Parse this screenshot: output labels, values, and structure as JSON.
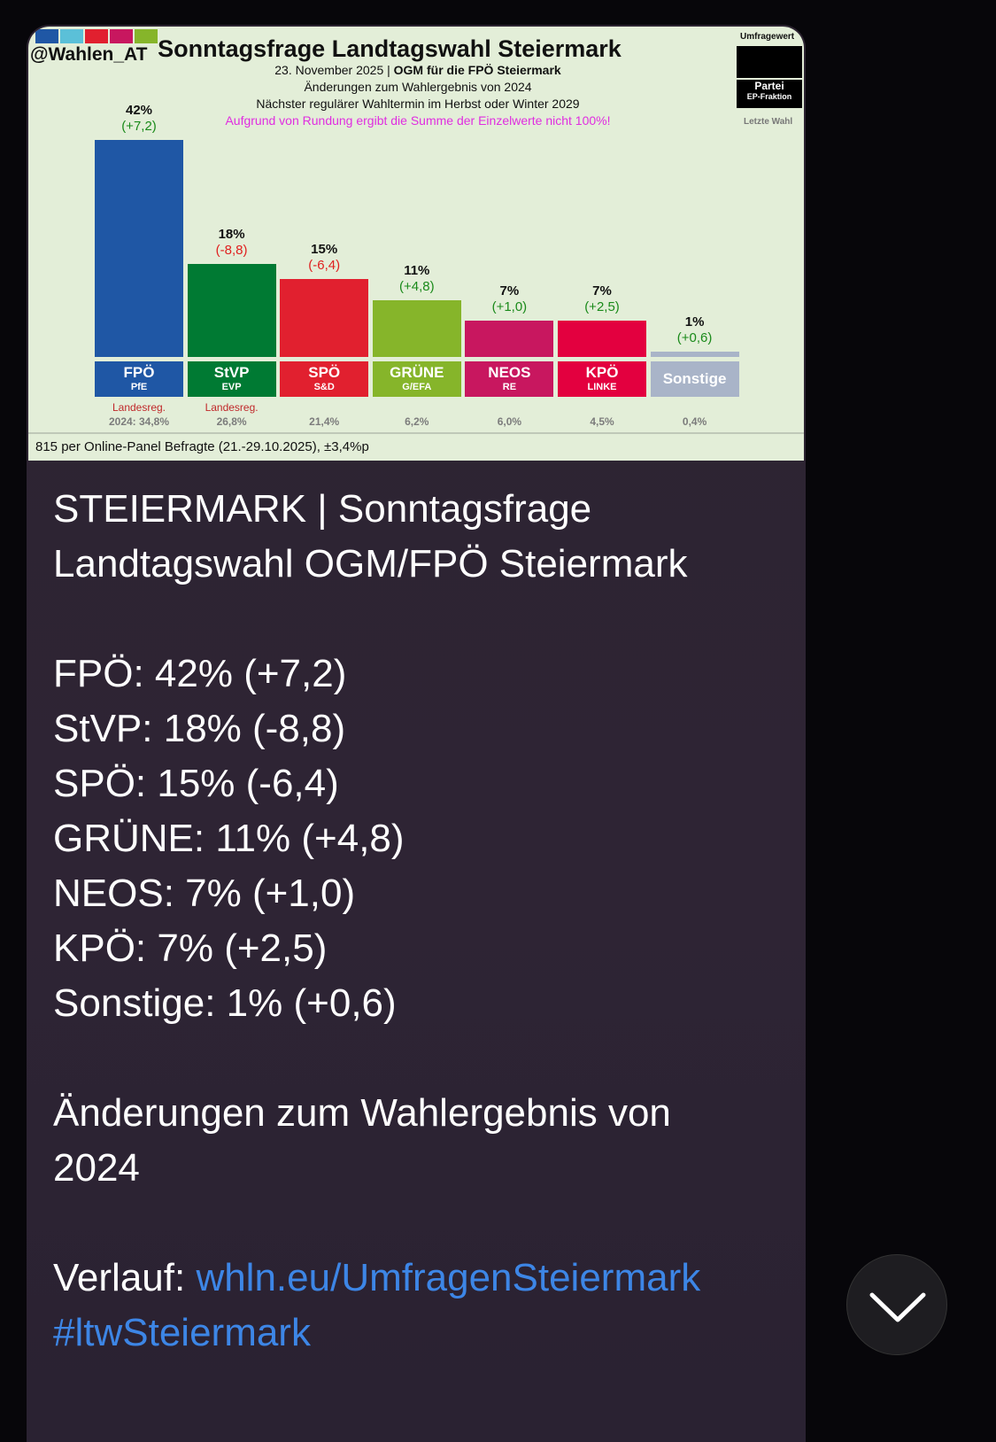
{
  "chart_image": {
    "handle": "@Wahlen_AT",
    "title": "Sonntagsfrage Landtagswahl Steiermark",
    "date": "23. November 2025 | ",
    "institute": "OGM für die FPÖ Steiermark",
    "line2": "Änderungen zum Wahlergebnis von 2024",
    "line3": "Nächster regulärer Wahltermin im Herbst oder Winter 2029",
    "note": "Aufgrund von Rundung ergibt die Summe der Einzelwerte nicht 100%!",
    "legend_top": "Umfragewert",
    "legend_partei": "Partei",
    "legend_fraktion": "EP-Fraktion",
    "legend_last": "Letzte Wahl",
    "footer": "815 per Online-Panel Befragte (21.-29.10.2025), ±3,4%p"
  },
  "chart_data": {
    "type": "bar",
    "title": "Sonntagsfrage Landtagswahl Steiermark",
    "ylim": [
      0,
      42
    ],
    "categories": [
      "FPÖ",
      "StVP",
      "SPÖ",
      "GRÜNE",
      "NEOS",
      "KPÖ",
      "Sonstige"
    ],
    "groups": [
      "PfE",
      "EVP",
      "S&D",
      "G/EFA",
      "RE",
      "LINKE",
      ""
    ],
    "values": [
      42,
      18,
      15,
      11,
      7,
      7,
      1
    ],
    "value_labels": [
      "42%",
      "18%",
      "15%",
      "11%",
      "7%",
      "7%",
      "1%"
    ],
    "changes": [
      "(+7,2)",
      "(-8,8)",
      "(-6,4)",
      "(+4,8)",
      "(+1,0)",
      "(+2,5)",
      "(+0,6)"
    ],
    "previous": [
      "2024: 34,8%",
      "26,8%",
      "21,4%",
      "6,2%",
      "6,0%",
      "4,5%",
      "0,4%"
    ],
    "notes": [
      "Landesreg.",
      "Landesreg.",
      "",
      "",
      "",
      "",
      ""
    ],
    "colors": [
      "#1f57a5",
      "#007a33",
      "#e1202f",
      "#86b52a",
      "#c8175f",
      "#e3003f",
      "#a9b4c8"
    ]
  },
  "message": {
    "lines": [
      "STEIERMARK | Sonntagsfrage",
      "Landtagswahl OGM/FPÖ Steiermark",
      "",
      "FPÖ: 42% (+7,2)",
      "StVP: 18% (-8,8)",
      "SPÖ: 15% (-6,4)",
      "GRÜNE: 11% (+4,8)",
      "NEOS: 7% (+1,0)",
      "KPÖ: 7% (+2,5)",
      "Sonstige: 1% (+0,6)",
      "",
      "Änderungen zum Wahlergebnis von",
      "2024",
      ""
    ],
    "verlauf_label": "Verlauf: ",
    "link": "whln.eu/UmfragenSteiermark",
    "hashtag": "#ltwSteiermark"
  }
}
